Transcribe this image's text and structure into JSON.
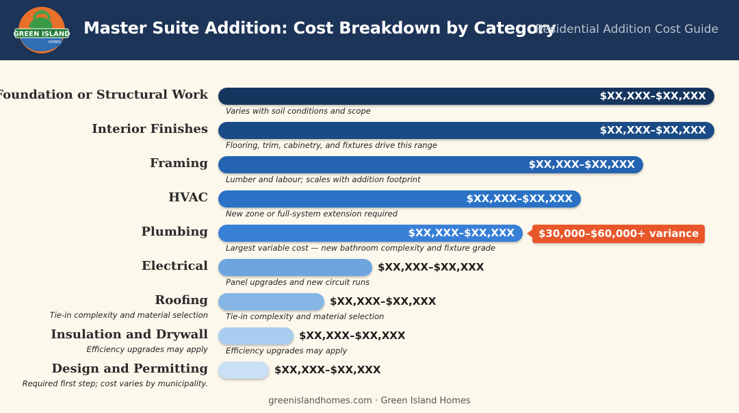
{
  "header": {
    "title": "Master Suite Addition: Cost Breakdown by Category",
    "subtitle": "Residential Addition Cost Guide",
    "logo": {
      "text": "GREEN ISLAND",
      "small_text": "HOMES",
      "icon": "recycle-globe-logo"
    }
  },
  "colors": {
    "header_bg": "#1c3457",
    "background": "#fdf8ec",
    "callout": "#e8572a",
    "bar_gradient": [
      "#16355e",
      "#1b4b86",
      "#2463b1",
      "#2b72c6",
      "#3880d6",
      "#6ea5de",
      "#86b6e6",
      "#a9cdf0",
      "#c9e0f6"
    ]
  },
  "chart_data": {
    "type": "bar",
    "orientation": "horizontal",
    "title": "Master Suite Addition: Cost Breakdown by Category",
    "categories": [
      "Foundation or Structural Work",
      "Interior Finishes",
      "Framing",
      "HVAC",
      "Plumbing",
      "Electrical",
      "Roofing",
      "Insulation and Drywall",
      "Design and Permitting"
    ],
    "relative_length": [
      1.0,
      1.0,
      0.857,
      0.731,
      0.614,
      0.311,
      0.214,
      0.152,
      0.102
    ],
    "value_labels": [
      "$XX,XXX–$XX,XXX",
      "$XX,XXX–$XX,XXX",
      "$XX,XXX–$XX,XXX",
      "$XX,XXX–$XX,XXX",
      "$XX,XXX–$XX,XXX",
      "$XX,XXX–$XX,XXX",
      "$XX,XXX–$XX,XXX",
      "$XX,XXX–$XX,XXX",
      "$XX,XXX–$XX,XXX"
    ],
    "notes": [
      "Varies with soil conditions and scope",
      "Flooring, trim, cabinetry, and fixtures drive this range",
      "Lumber and labour; scales with addition footprint",
      "New zone or full-system extension required",
      "Largest variable cost — new bathroom complexity and fixture grade",
      "Panel upgrades and new circuit runs",
      "Tie-in complexity and material selection",
      "Efficiency upgrades may apply",
      ""
    ],
    "sublabels": [
      "",
      "",
      "",
      "",
      "",
      "",
      "Tie-in complexity and material selection",
      "Efficiency upgrades may apply",
      "Required first step; cost varies by municipality."
    ],
    "callouts": [
      {
        "category": "Plumbing",
        "text": "$30,000–$60,000+ variance"
      }
    ],
    "grid": false,
    "legend": "none"
  },
  "footer": {
    "text": "greenislandhomes.com · Green Island Homes"
  }
}
